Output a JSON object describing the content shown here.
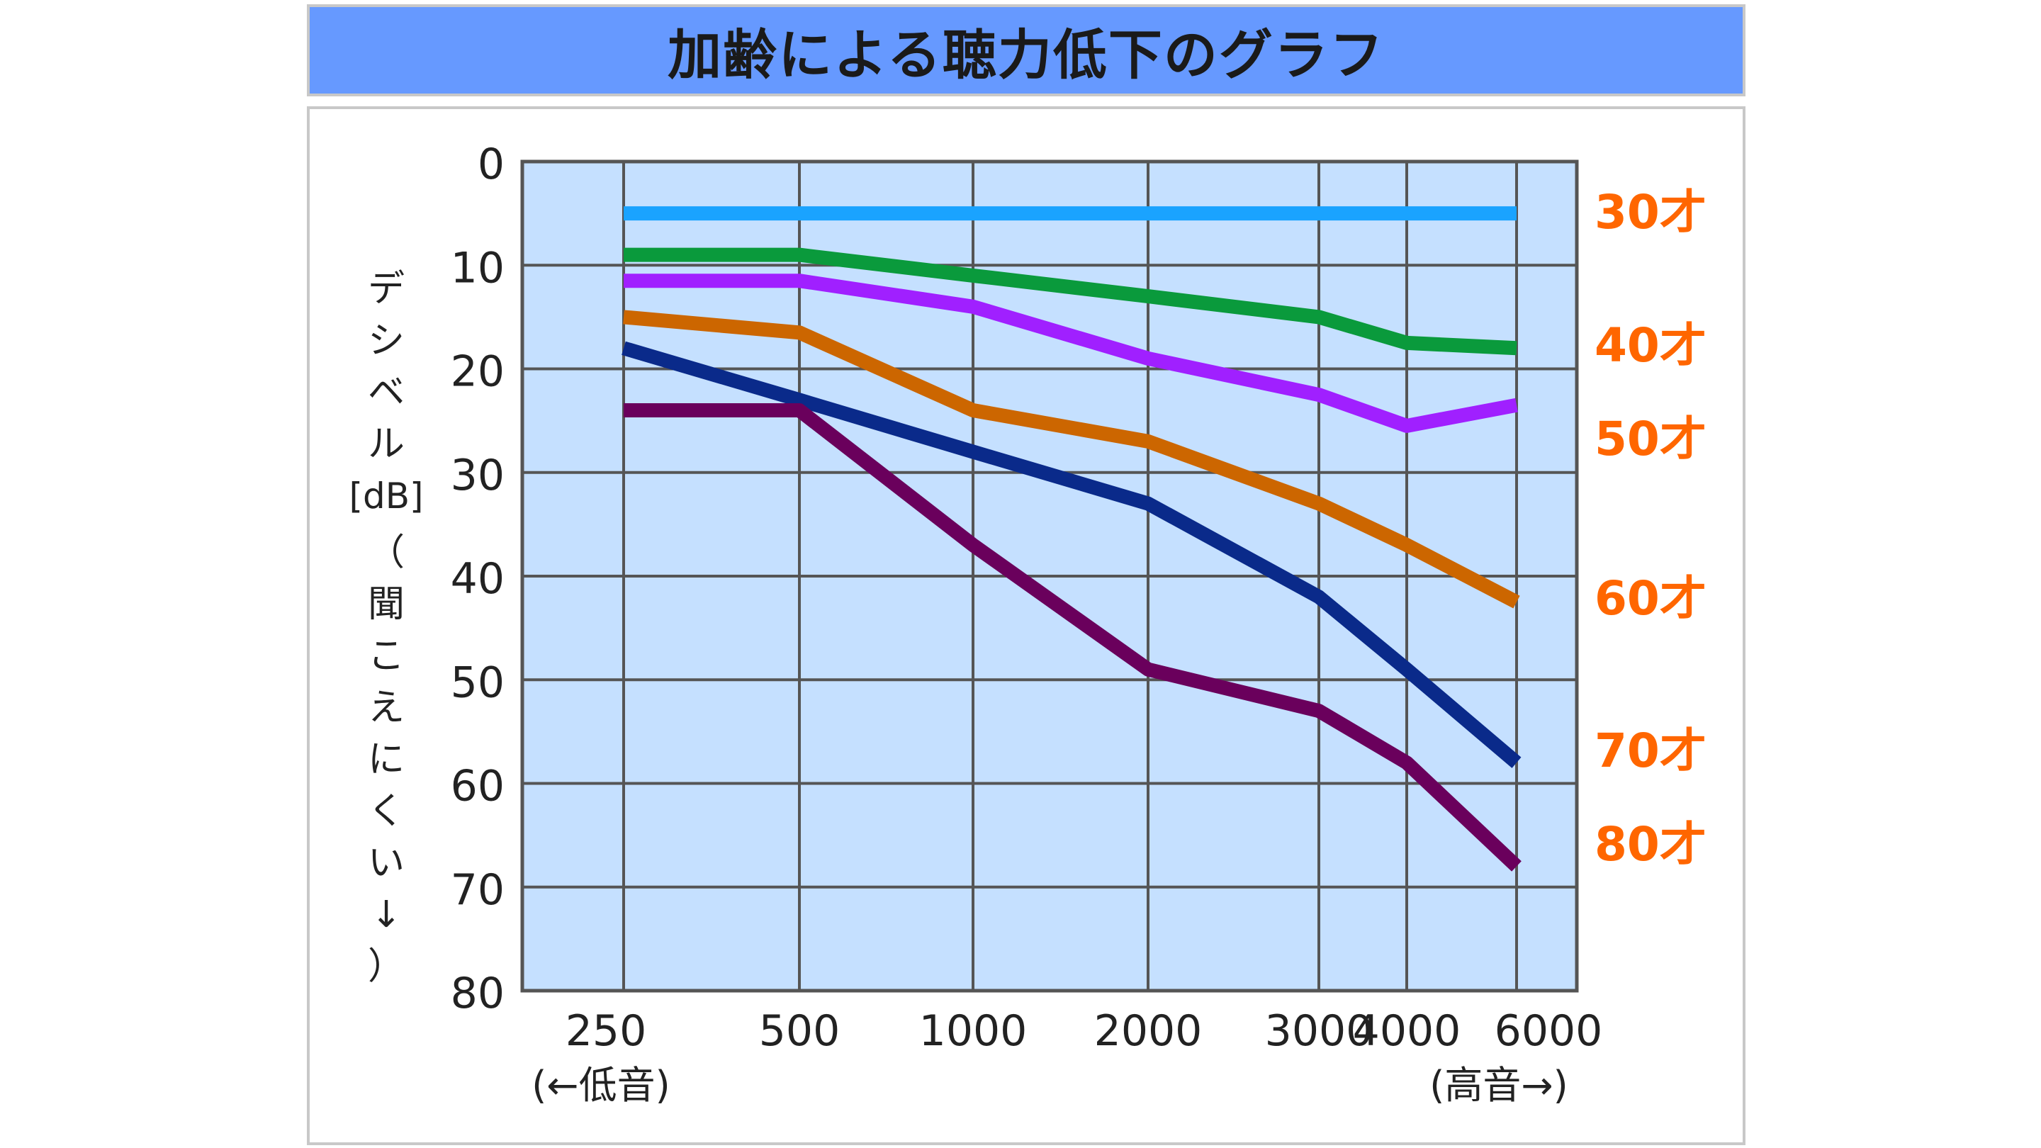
{
  "title": "加齢による聴力低下のグラフ",
  "chart_data": {
    "type": "line",
    "title": "加齢による聴力低下のグラフ",
    "ylabel": "デシベル[dB]（聞こえにくい↓）",
    "ylabel_chars": [
      "デ",
      "シ",
      "ベ",
      "ル",
      "[dB]",
      "（",
      "聞",
      "こ",
      "え",
      "に",
      "く",
      "い",
      "↓",
      "）"
    ],
    "categories": [
      "250",
      "500",
      "1000",
      "2000",
      "3000",
      "4000",
      "6000"
    ],
    "x_sub_labels": {
      "left": "(←低音)",
      "right": "(高音→)"
    },
    "y_ticks": [
      0,
      10,
      20,
      30,
      40,
      50,
      60,
      70,
      80
    ],
    "ylim": [
      0,
      80
    ],
    "y_inverted": true,
    "grid": true,
    "series": [
      {
        "name": "30才",
        "color": "#1aa3ff",
        "values": [
          5,
          5,
          5,
          5,
          5,
          5,
          5
        ]
      },
      {
        "name": "40才",
        "color": "#0a9a3c",
        "values": [
          9,
          9,
          11,
          13,
          15,
          17.5,
          18
        ]
      },
      {
        "name": "50才",
        "color": "#a020ff",
        "values": [
          11.5,
          11.5,
          14,
          19,
          22.5,
          25.5,
          23.5
        ]
      },
      {
        "name": "60才",
        "color": "#cc6600",
        "values": [
          15,
          16.5,
          24,
          27,
          33,
          37,
          42.5
        ]
      },
      {
        "name": "70才",
        "color": "#0a2a8a",
        "values": [
          18,
          23,
          28,
          33,
          42,
          49,
          58
        ]
      },
      {
        "name": "80才",
        "color": "#6a005c",
        "values": [
          24,
          24,
          37,
          49,
          53,
          58,
          68
        ]
      }
    ],
    "legend_placement": "right",
    "legend_color": "#ff6600"
  }
}
